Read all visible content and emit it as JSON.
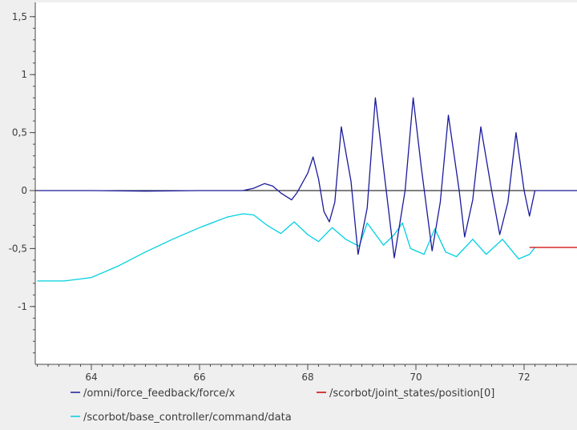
{
  "chart_data": {
    "type": "line",
    "title": "",
    "xlabel": "",
    "ylabel": "",
    "xlim": [
      63.0,
      73.0
    ],
    "ylim": [
      -1.45,
      1.55
    ],
    "x_ticks": [
      64,
      66,
      68,
      70,
      72
    ],
    "x_tick_labels": [
      "64",
      "66",
      "68",
      "70",
      "72"
    ],
    "y_ticks": [
      1.5,
      1,
      0.5,
      0,
      -0.5,
      -1
    ],
    "y_tick_labels": [
      "1,5",
      "1",
      "0,5",
      "0",
      "-0,5",
      "-1"
    ],
    "grid": false,
    "zero_line": true,
    "legend_position": "bottom",
    "series": [
      {
        "name": "/omni/force_feedback/force/x",
        "color": "#1a1a9c",
        "points": [
          [
            63.0,
            0.0
          ],
          [
            64.0,
            0.0
          ],
          [
            65.0,
            -0.005
          ],
          [
            66.0,
            0.0
          ],
          [
            66.8,
            0.0
          ],
          [
            67.0,
            0.02
          ],
          [
            67.2,
            0.06
          ],
          [
            67.35,
            0.04
          ],
          [
            67.5,
            -0.02
          ],
          [
            67.7,
            -0.08
          ],
          [
            67.8,
            -0.02
          ],
          [
            68.0,
            0.15
          ],
          [
            68.1,
            0.29
          ],
          [
            68.2,
            0.1
          ],
          [
            68.3,
            -0.18
          ],
          [
            68.4,
            -0.27
          ],
          [
            68.5,
            -0.1
          ],
          [
            68.62,
            0.55
          ],
          [
            68.8,
            0.08
          ],
          [
            68.93,
            -0.55
          ],
          [
            69.1,
            -0.15
          ],
          [
            69.25,
            0.8
          ],
          [
            69.4,
            0.2
          ],
          [
            69.6,
            -0.58
          ],
          [
            69.8,
            0.0
          ],
          [
            69.95,
            0.8
          ],
          [
            70.1,
            0.2
          ],
          [
            70.3,
            -0.52
          ],
          [
            70.45,
            -0.1
          ],
          [
            70.6,
            0.65
          ],
          [
            70.8,
            0.0
          ],
          [
            70.9,
            -0.4
          ],
          [
            71.05,
            -0.08
          ],
          [
            71.2,
            0.55
          ],
          [
            71.4,
            0.0
          ],
          [
            71.55,
            -0.38
          ],
          [
            71.7,
            -0.1
          ],
          [
            71.85,
            0.5
          ],
          [
            72.0,
            0.0
          ],
          [
            72.1,
            -0.22
          ],
          [
            72.2,
            0.0
          ],
          [
            72.3,
            0.0
          ],
          [
            73.0,
            0.0
          ]
        ]
      },
      {
        "name": "/scorbot/joint_states/position[0]",
        "color": "#cc0000",
        "points": [
          [
            72.1,
            -0.49
          ],
          [
            73.0,
            -0.49
          ]
        ]
      },
      {
        "name": "/scorbot/base_controller/command/data",
        "color": "#00d0e0",
        "points": [
          [
            63.0,
            -0.78
          ],
          [
            63.5,
            -0.78
          ],
          [
            64.0,
            -0.75
          ],
          [
            64.5,
            -0.65
          ],
          [
            65.0,
            -0.53
          ],
          [
            65.5,
            -0.42
          ],
          [
            66.0,
            -0.32
          ],
          [
            66.5,
            -0.23
          ],
          [
            66.8,
            -0.2
          ],
          [
            67.0,
            -0.21
          ],
          [
            67.25,
            -0.3
          ],
          [
            67.5,
            -0.37
          ],
          [
            67.75,
            -0.27
          ],
          [
            68.0,
            -0.38
          ],
          [
            68.2,
            -0.44
          ],
          [
            68.45,
            -0.32
          ],
          [
            68.7,
            -0.42
          ],
          [
            68.95,
            -0.48
          ],
          [
            69.1,
            -0.28
          ],
          [
            69.4,
            -0.47
          ],
          [
            69.6,
            -0.38
          ],
          [
            69.75,
            -0.28
          ],
          [
            69.9,
            -0.5
          ],
          [
            70.15,
            -0.55
          ],
          [
            70.35,
            -0.33
          ],
          [
            70.55,
            -0.53
          ],
          [
            70.75,
            -0.57
          ],
          [
            71.05,
            -0.42
          ],
          [
            71.3,
            -0.55
          ],
          [
            71.6,
            -0.42
          ],
          [
            71.9,
            -0.59
          ],
          [
            72.1,
            -0.55
          ],
          [
            72.2,
            -0.49
          ]
        ]
      }
    ]
  }
}
